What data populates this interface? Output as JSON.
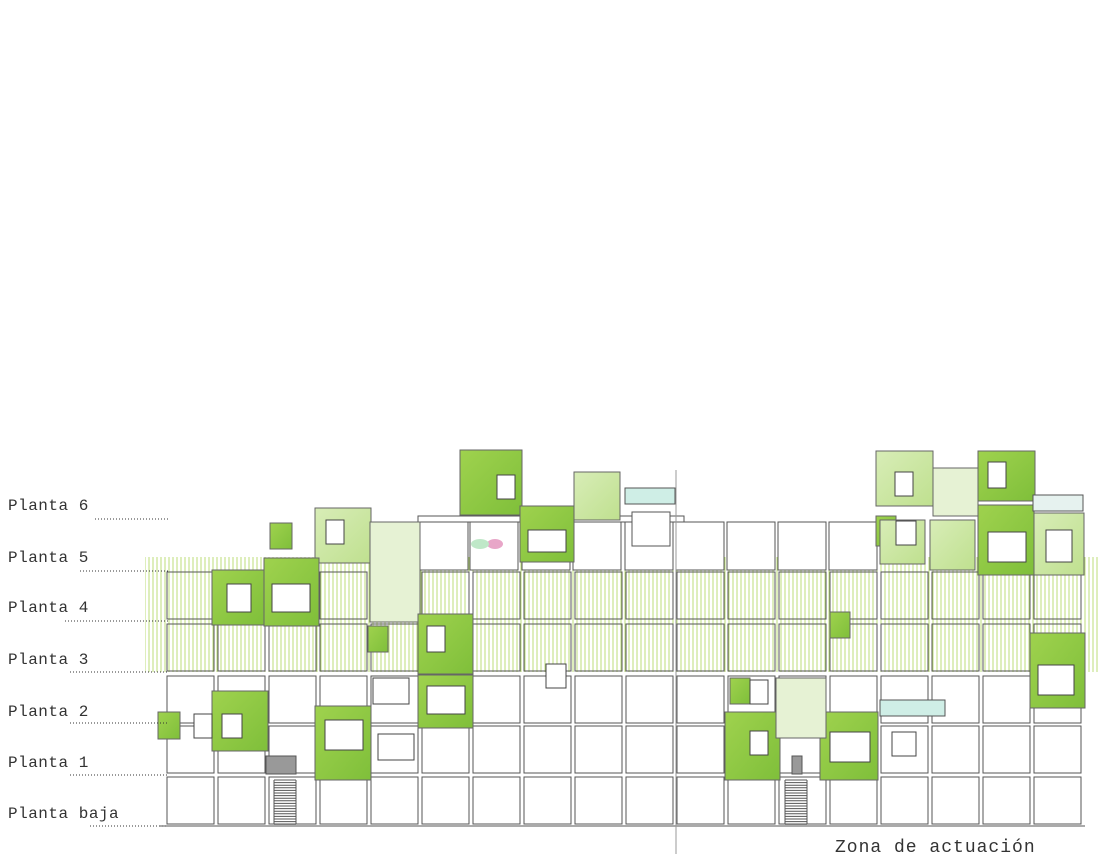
{
  "floors": [
    {
      "label": "Planta 6"
    },
    {
      "label": "Planta 5"
    },
    {
      "label": "Planta 4"
    },
    {
      "label": "Planta 3"
    },
    {
      "label": "Planta 2"
    },
    {
      "label": "Planta 1"
    },
    {
      "label": "Planta baja"
    }
  ],
  "zone_label": "Zona de actuación",
  "colors": {
    "green_strong": "#8cc63f",
    "green_light": "#cfe8a8",
    "green_pale": "#e6f2d4",
    "hatch": "#b5d96a",
    "line": "#555555",
    "accent_pink": "#e8a6c8",
    "accent_blue": "#cfeee6"
  }
}
